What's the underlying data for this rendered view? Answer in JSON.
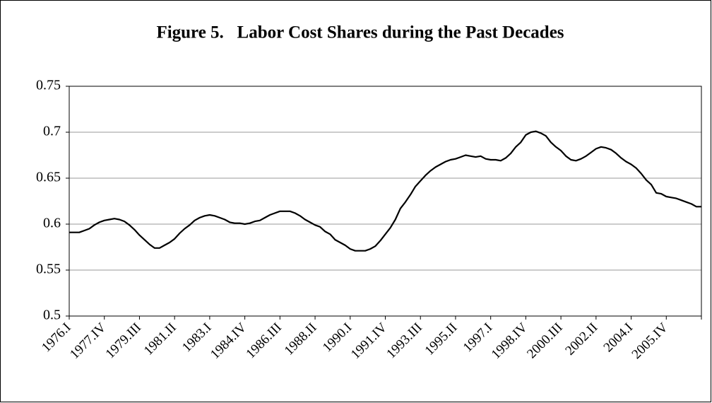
{
  "chart_data": {
    "type": "line",
    "title": "Figure 5.   Labor Cost Shares during the Past Decades",
    "categories": [
      "1976.I",
      null,
      null,
      null,
      null,
      null,
      null,
      "1977.IV",
      null,
      null,
      null,
      null,
      null,
      null,
      "1979.III",
      null,
      null,
      null,
      null,
      null,
      null,
      "1981.II",
      null,
      null,
      null,
      null,
      null,
      null,
      "1983.I",
      null,
      null,
      null,
      null,
      null,
      null,
      "1984.IV",
      null,
      null,
      null,
      null,
      null,
      null,
      "1986.III",
      null,
      null,
      null,
      null,
      null,
      null,
      "1988.II",
      null,
      null,
      null,
      null,
      null,
      null,
      "1990.I",
      null,
      null,
      null,
      null,
      null,
      null,
      "1991.IV",
      null,
      null,
      null,
      null,
      null,
      null,
      "1993.III",
      null,
      null,
      null,
      null,
      null,
      null,
      "1995.II",
      null,
      null,
      null,
      null,
      null,
      null,
      "1997.I",
      null,
      null,
      null,
      null,
      null,
      null,
      "1998.IV",
      null,
      null,
      null,
      null,
      null,
      null,
      "2000.III",
      null,
      null,
      null,
      null,
      null,
      null,
      "2002.II",
      null,
      null,
      null,
      null,
      null,
      null,
      "2004.I",
      null,
      null,
      null,
      null,
      null,
      null,
      "2005.IV",
      null,
      null,
      null,
      null,
      null,
      null,
      null
    ],
    "values": [
      0.591,
      0.591,
      0.591,
      0.593,
      0.595,
      0.599,
      0.602,
      0.604,
      0.605,
      0.606,
      0.605,
      0.603,
      0.599,
      0.594,
      0.588,
      0.583,
      0.578,
      0.574,
      0.574,
      0.577,
      0.58,
      0.584,
      0.59,
      0.595,
      0.599,
      0.604,
      0.607,
      0.609,
      0.61,
      0.609,
      0.607,
      0.605,
      0.602,
      0.601,
      0.601,
      0.6,
      0.601,
      0.603,
      0.604,
      0.607,
      0.61,
      0.612,
      0.614,
      0.614,
      0.614,
      0.612,
      0.609,
      0.605,
      0.602,
      0.599,
      0.597,
      0.592,
      0.589,
      0.583,
      0.58,
      0.577,
      0.573,
      0.571,
      0.571,
      0.571,
      0.573,
      0.576,
      0.582,
      0.589,
      0.596,
      0.605,
      0.617,
      0.624,
      0.632,
      0.641,
      0.647,
      0.653,
      0.658,
      0.662,
      0.665,
      0.668,
      0.67,
      0.671,
      0.673,
      0.675,
      0.674,
      0.673,
      0.674,
      0.671,
      0.67,
      0.67,
      0.669,
      0.672,
      0.677,
      0.684,
      0.689,
      0.697,
      0.7,
      0.701,
      0.699,
      0.696,
      0.689,
      0.684,
      0.68,
      0.674,
      0.67,
      0.669,
      0.671,
      0.674,
      0.678,
      0.682,
      0.684,
      0.683,
      0.681,
      0.677,
      0.672,
      0.668,
      0.665,
      0.661,
      0.655,
      0.648,
      0.643,
      0.634,
      0.633,
      0.63,
      0.629,
      0.628,
      0.626,
      0.624,
      0.622,
      0.619,
      0.619
    ],
    "color": "#000000",
    "ylim": [
      0.5,
      0.75
    ],
    "yticks": [
      0.5,
      0.55,
      0.6,
      0.65,
      0.7,
      0.75
    ],
    "grid": true
  }
}
